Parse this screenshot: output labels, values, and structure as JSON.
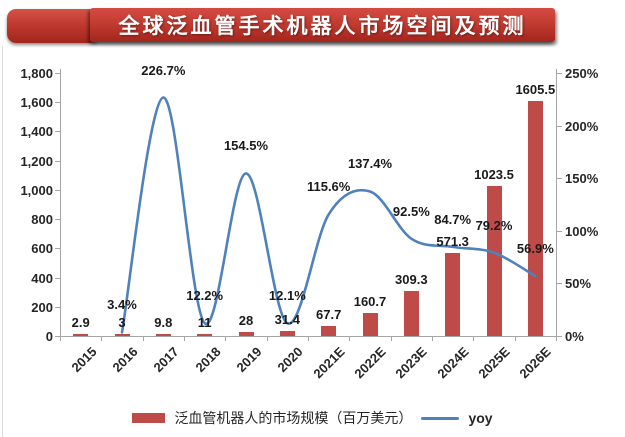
{
  "chart_data": {
    "type": "bar+line combo",
    "title": "全球泛血管手术机器人市场空间及预测",
    "categories": [
      "2015",
      "2016",
      "2017",
      "2018",
      "2019",
      "2020",
      "2021E",
      "2022E",
      "2023E",
      "2024E",
      "2025E",
      "2026E"
    ],
    "series": [
      {
        "name": "泛血管机器人的市场规模（百万美元）",
        "type": "bar",
        "axis": "left",
        "color": "#BE4B48",
        "values": [
          2.9,
          3,
          9.8,
          11,
          28,
          31.4,
          67.7,
          160.7,
          309.3,
          571.3,
          1023.5,
          1605.5
        ],
        "labels": [
          "2.9",
          "3",
          "9.8",
          "11",
          "28",
          "31.4",
          "67.7",
          "160.7",
          "309.3",
          "571.3",
          "1023.5",
          "1605.5"
        ]
      },
      {
        "name": "yoy",
        "type": "line",
        "axis": "right",
        "color": "#4F81BD",
        "values": [
          null,
          3.4,
          226.7,
          12.2,
          154.5,
          12.1,
          115.6,
          137.4,
          92.5,
          84.7,
          79.2,
          56.9
        ],
        "labels": [
          null,
          "3.4%",
          "226.7%",
          "12.2%",
          "154.5%",
          "12.1%",
          "115.6%",
          "137.4%",
          "92.5%",
          "84.7%",
          "79.2%",
          "56.9%"
        ]
      }
    ],
    "left_axis": {
      "min": 0,
      "max": 1800,
      "step": 200,
      "tick_labels": [
        "0",
        "200",
        "400",
        "600",
        "800",
        "1,000",
        "1,200",
        "1,400",
        "1,600",
        "1,800"
      ]
    },
    "right_axis": {
      "min": 0,
      "max": 250,
      "step": 50,
      "tick_labels": [
        "0%",
        "50%",
        "100%",
        "150%",
        "200%",
        "250%"
      ]
    },
    "grid": "off",
    "legend_position": "bottom",
    "legend": [
      "泛血管机器人的市场规模（百万美元）",
      "yoy"
    ]
  },
  "colors": {
    "banner": "#C23B31",
    "bar": "#BE4B48",
    "line": "#4F81BD",
    "axis": "#A6A6A6",
    "text": "#262626"
  }
}
